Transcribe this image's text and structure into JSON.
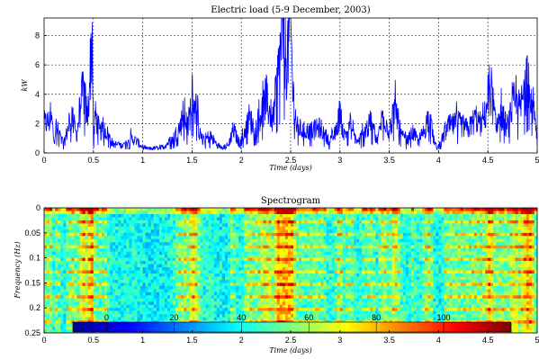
{
  "chart_data": [
    {
      "type": "line",
      "title": "Electric load (5-9 December, 2003)",
      "xlabel": "Time (days)",
      "ylabel": "kW",
      "xlim": [
        0,
        5
      ],
      "ylim": [
        0,
        9.2
      ],
      "xticks": [
        "0",
        "0.5",
        "1",
        "1.5",
        "2",
        "2.5",
        "3",
        "3.5",
        "4",
        "4.5",
        "5"
      ],
      "yticks": [
        "0",
        "2",
        "4",
        "6",
        "8"
      ],
      "grid": true,
      "color": "#0000ff",
      "x": [
        0,
        0.08,
        0.1,
        0.12,
        0.2,
        0.28,
        0.33,
        0.37,
        0.4,
        0.44,
        0.47,
        0.49,
        0.5,
        0.52,
        0.56,
        0.62,
        0.7,
        0.8,
        0.88,
        0.94,
        0.98,
        1.02,
        1.1,
        1.2,
        1.3,
        1.38,
        1.42,
        1.46,
        1.5,
        1.54,
        1.58,
        1.62,
        1.68,
        1.76,
        1.86,
        1.92,
        1.98,
        2.02,
        2.08,
        2.14,
        2.2,
        2.26,
        2.32,
        2.37,
        2.42,
        2.46,
        2.5,
        2.52,
        2.56,
        2.62,
        2.7,
        2.8,
        2.9,
        2.96,
        3.0,
        3.04,
        3.1,
        3.18,
        3.26,
        3.32,
        3.38,
        3.44,
        3.5,
        3.56,
        3.62,
        3.68,
        3.74,
        3.8,
        3.86,
        3.9,
        3.94,
        3.98,
        4.02,
        4.1,
        4.2,
        4.3,
        4.38,
        4.44,
        4.48,
        4.52,
        4.58,
        4.64,
        4.7,
        4.76,
        4.82,
        4.88,
        4.92,
        4.96,
        5.0
      ],
      "y": [
        2.0,
        2.2,
        0.8,
        1.8,
        0.6,
        2.6,
        1.2,
        3.2,
        4.4,
        2.2,
        6.0,
        8.1,
        0.8,
        2.6,
        1.4,
        1.6,
        0.6,
        0.5,
        1.0,
        0.8,
        0.5,
        0.3,
        0.3,
        0.4,
        0.9,
        1.8,
        2.8,
        1.6,
        4.0,
        3.0,
        1.2,
        0.8,
        1.2,
        0.5,
        0.4,
        1.6,
        0.6,
        1.2,
        2.4,
        1.6,
        2.8,
        3.4,
        2.2,
        5.2,
        8.4,
        6.2,
        9.2,
        4.4,
        1.8,
        1.5,
        1.5,
        1.7,
        0.8,
        1.4,
        2.8,
        1.2,
        1.8,
        0.7,
        1.6,
        2.0,
        0.8,
        2.8,
        1.4,
        3.2,
        1.2,
        0.8,
        1.4,
        0.7,
        1.6,
        2.6,
        1.2,
        0.3,
        0.6,
        1.8,
        2.0,
        1.6,
        2.4,
        1.8,
        2.8,
        5.0,
        1.8,
        2.6,
        1.6,
        3.4,
        2.8,
        4.4,
        5.2,
        3.2,
        0.6
      ]
    },
    {
      "type": "heatmap",
      "title": "Spectrogram",
      "xlabel": "Time (days)",
      "ylabel": "Frequency (Hz)",
      "xlim": [
        0,
        5
      ],
      "ylim": [
        0,
        0.25
      ],
      "xticks": [
        "0",
        "0.5",
        "1",
        "1.5",
        "2",
        "2.5",
        "3",
        "3.5",
        "4",
        "4.5",
        "5"
      ],
      "yticks": [
        "0",
        "0.05",
        "0.1",
        "0.15",
        "0.2",
        "0.25"
      ],
      "colorbar": {
        "ticks": [
          "0",
          "20",
          "40",
          "60",
          "80",
          "100"
        ],
        "range": [
          -10,
          120
        ],
        "colormap": "jet",
        "placement": "inside-bottom"
      }
    }
  ]
}
